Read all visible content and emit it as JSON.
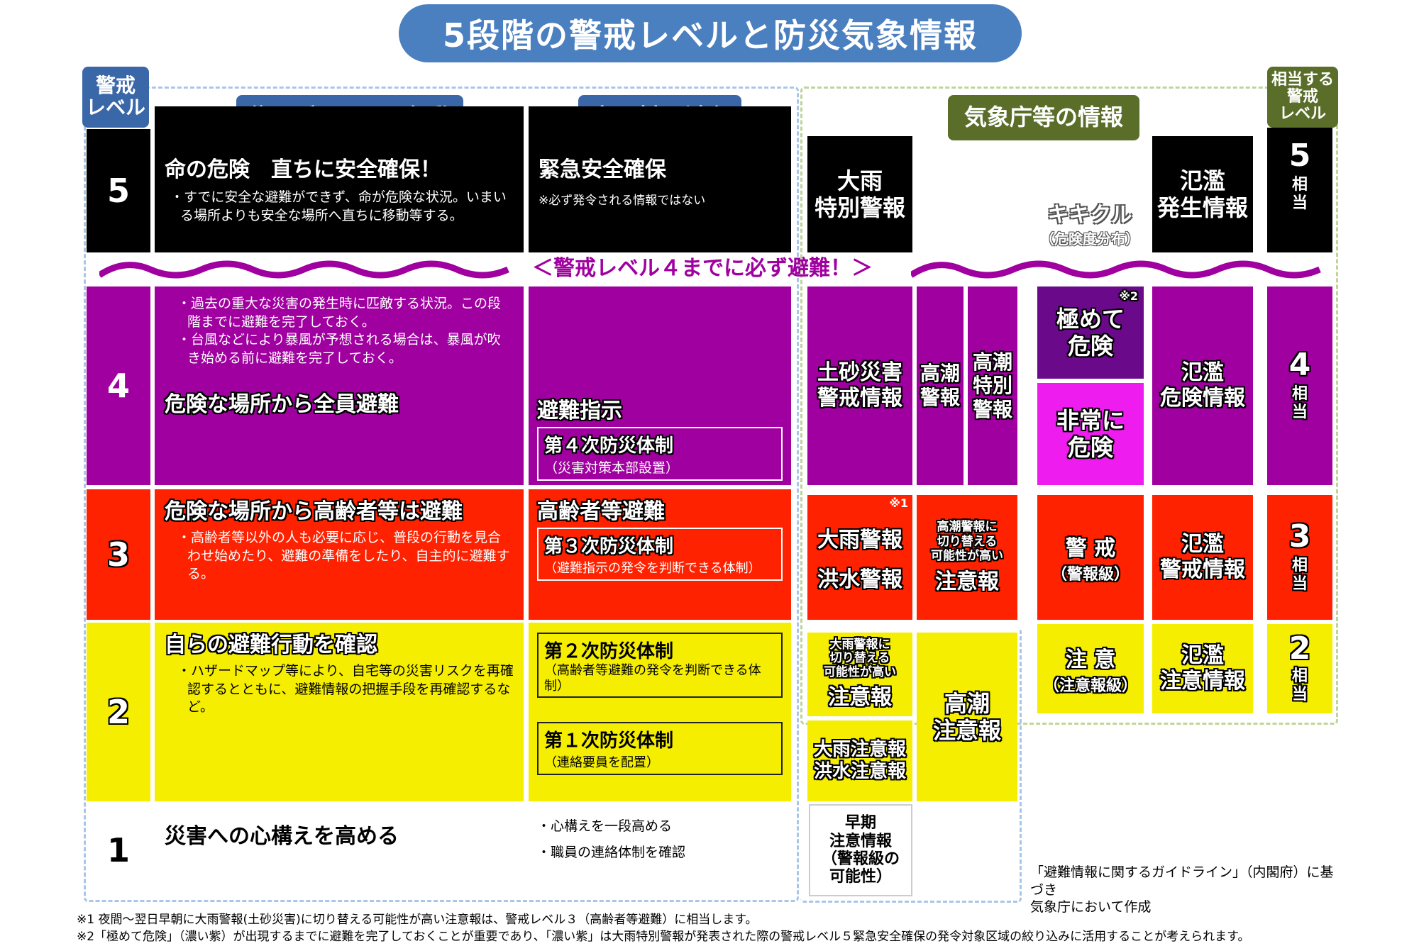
{
  "title": "5段階の警戒レベルと防災気象情報",
  "headers": {
    "level_tag": "警戒\nレベル",
    "residents": "住民が取るべき行動",
    "municipality": "市町村の対応",
    "jma": "気象庁等の情報",
    "equiv_tag": "相当する\n警戒\nレベル"
  },
  "levels": {
    "l5": "5",
    "l4": "4",
    "l3": "3",
    "l2": "2",
    "l1": "1"
  },
  "residents": {
    "l5_head": "命の危険　直ちに安全確保！",
    "l5_bul": "・すでに安全な避難ができず、命が危険な状況。いまいる場所よりも安全な場所へ直ちに移動等する。",
    "l4_bul1": "・過去の重大な災害の発生時に匹敵する状況。この段階までに避難を完了しておく。",
    "l4_bul2": "・台風などにより暴風が予想される場合は、暴風が吹き始める前に避難を完了しておく。",
    "l4_head": "危険な場所から全員避難",
    "l3_head": "危険な場所から高齢者等は避難",
    "l3_bul": "・高齢者等以外の人も必要に応じ、普段の行動を見合わせ始めたり、避難の準備をしたり、自主的に避難する。",
    "l2_head": "自らの避難行動を確認",
    "l2_bul": "・ハザードマップ等により、自宅等の災害リスクを再確認するとともに、避難情報の把握手段を再確認するなど。",
    "l1_head": "災害への心構えを高める"
  },
  "municipality": {
    "l5_head": "緊急安全確保",
    "l5_note": "※必ず発令される情報ではない",
    "l4_head": "避難指示",
    "l4_box_title": "第４次防災体制",
    "l4_box_sub": "（災害対策本部設置）",
    "l3_head": "高齢者等避難",
    "l3_box_title": "第３次防災体制",
    "l3_box_sub": "（避難指示の発令を判断できる体制）",
    "l2_box1_title": "第２次防災体制",
    "l2_box1_sub": "（高齢者等避難の発令を判断できる体制）",
    "l2_box2_title": "第１次防災体制",
    "l2_box2_sub": "（連絡要員を配置）",
    "l1_bul1": "・心構えを一段高める",
    "l1_bul2": "・職員の連絡体制を確認"
  },
  "banner": "＜警戒レベル４までに必ず避難！＞",
  "jma": {
    "heavy_rain_special": "大雨\n特別警報",
    "flood_occurrence": "氾濫\n発生情報",
    "kikikuru": "キキクル",
    "kikikuru_sub": "（危険度分布）",
    "sediment_alert": "土砂災害\n警戒情報",
    "storm_surge_warning": "高潮\n警報",
    "storm_surge_special": "高潮\n特別\n警報",
    "extreme_danger": "極めて\n危険",
    "note2": "※2",
    "very_danger": "非常に\n危険",
    "flood_danger": "氾濫\n危険情報",
    "note1": "※1",
    "heavy_rain_warning": "大雨警報",
    "flood_warning": "洪水警報",
    "surge_switch_small": "高潮警報に\n切り替える\n可能性が高い",
    "surge_switch_big": "注意報",
    "warning_level": "警 戒",
    "warning_level_sub": "（警報級）",
    "flood_warning_info": "氾濫\n警戒情報",
    "rain_switch_small": "大雨警報に\n切り替える\n可能性が高い",
    "rain_switch_big": "注意報",
    "surge_advisory": "高潮\n注意報",
    "caution_level": "注 意",
    "caution_level_sub": "（注意報級）",
    "flood_caution_info": "氾濫\n注意情報",
    "rain_flood_advisory": "大雨注意報\n洪水注意報",
    "early_warning": "早期\n注意情報\n（警報級の\n可能性）"
  },
  "equiv": {
    "e5_num": "5",
    "e5_txt": "相\n当",
    "e4_num": "4",
    "e4_txt": "相\n当",
    "e3_num": "3",
    "e3_txt": "相\n当",
    "e2_num": "2",
    "e2_txt": "相\n当"
  },
  "source_note": "「避難情報に関するガイドライン」（内閣府）に基づき\n気象庁において作成",
  "footnote1": "※1 夜間～翌日早朝に大雨警報(土砂災害)に切り替える可能性が高い注意報は、警戒レベル３（高齢者等避難）に相当します。",
  "footnote2": "※2「極めて危険」（濃い紫）が出現するまでに避難を完了しておくことが重要であり、「濃い紫」は大雨特別警報が発表された際の警戒レベル５緊急安全確保の発令対象区域の絞り込みに活用することが考えられます。",
  "colors": {
    "black": "#000000",
    "purple": "#a000a0",
    "red": "#ff2200",
    "yellow": "#f5ee00",
    "dark_purple": "#6a0a8a",
    "magenta": "#ee1cee",
    "title_blue": "#4a7fc0",
    "header_blue": "#3a67a8",
    "header_green": "#5a6e2a",
    "wave": "#a000a0"
  }
}
